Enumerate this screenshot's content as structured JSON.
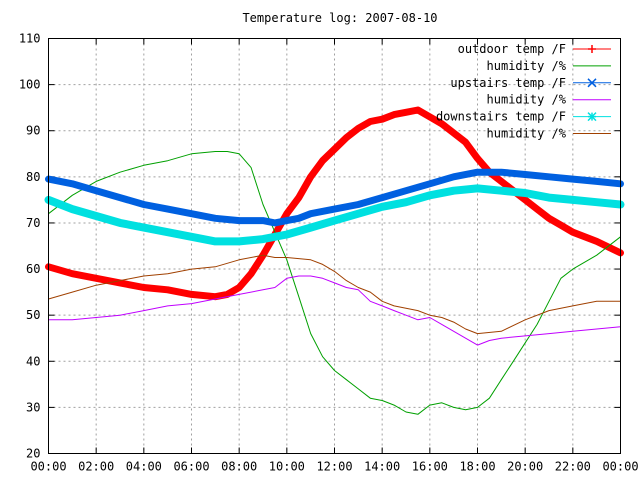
{
  "chart_data": {
    "type": "line",
    "title": "Temperature log: 2007-08-10",
    "xlabel": "",
    "ylabel": "",
    "xlim": [
      0,
      24
    ],
    "ylim": [
      20,
      110
    ],
    "x_ticks": [
      {
        "value": 0,
        "label": "00:00"
      },
      {
        "value": 2,
        "label": "02:00"
      },
      {
        "value": 4,
        "label": "04:00"
      },
      {
        "value": 6,
        "label": "06:00"
      },
      {
        "value": 8,
        "label": "08:00"
      },
      {
        "value": 10,
        "label": "10:00"
      },
      {
        "value": 12,
        "label": "12:00"
      },
      {
        "value": 14,
        "label": "14:00"
      },
      {
        "value": 16,
        "label": "16:00"
      },
      {
        "value": 18,
        "label": "18:00"
      },
      {
        "value": 20,
        "label": "20:00"
      },
      {
        "value": 22,
        "label": "22:00"
      },
      {
        "value": 24,
        "label": "00:00"
      }
    ],
    "y_ticks": [
      {
        "value": 20,
        "label": "20"
      },
      {
        "value": 30,
        "label": "30"
      },
      {
        "value": 40,
        "label": "40"
      },
      {
        "value": 50,
        "label": "50"
      },
      {
        "value": 60,
        "label": "60"
      },
      {
        "value": 70,
        "label": "70"
      },
      {
        "value": 80,
        "label": "80"
      },
      {
        "value": 90,
        "label": "90"
      },
      {
        "value": 100,
        "label": "100"
      },
      {
        "value": 110,
        "label": "110"
      }
    ],
    "grid": true,
    "legend_position": "top-right",
    "series": [
      {
        "name": "outdoor temp /F",
        "color": "#ff0000",
        "marker": "plus",
        "width": 7,
        "x": [
          0,
          1,
          2,
          3,
          4,
          5,
          6,
          7,
          7.5,
          8,
          8.5,
          9,
          9.5,
          10,
          10.5,
          11,
          11.5,
          12,
          12.5,
          13,
          13.5,
          14,
          14.5,
          15,
          15.5,
          16,
          16.5,
          17,
          17.5,
          18,
          18.5,
          19,
          19.5,
          20,
          20.5,
          21,
          21.5,
          22,
          23,
          24
        ],
        "y": [
          60.5,
          59.0,
          58.0,
          57.0,
          56.0,
          55.5,
          54.5,
          54.0,
          54.5,
          56.0,
          59.0,
          63.0,
          67.5,
          72.0,
          75.5,
          80.0,
          83.5,
          86.0,
          88.5,
          90.5,
          92.0,
          92.5,
          93.5,
          94.0,
          94.5,
          93.0,
          91.5,
          89.5,
          87.5,
          84.0,
          81.0,
          79.0,
          77.0,
          75.0,
          73.0,
          71.0,
          69.5,
          68.0,
          66.0,
          63.5
        ]
      },
      {
        "name": "humidity /%",
        "color": "#00a000",
        "marker": "none",
        "width": 1,
        "x": [
          0,
          1,
          2,
          3,
          4,
          5,
          6,
          7,
          7.5,
          8,
          8.5,
          9,
          9.5,
          10,
          10.5,
          11,
          11.5,
          12,
          12.5,
          13,
          13.5,
          14,
          14.5,
          15,
          15.5,
          16,
          16.5,
          17,
          17.5,
          18,
          18.5,
          19,
          19.5,
          20,
          20.5,
          21,
          21.5,
          22,
          23,
          24
        ],
        "y": [
          72,
          76,
          79,
          81,
          82.5,
          83.5,
          85,
          85.5,
          85.5,
          85,
          82,
          74,
          68,
          62,
          54,
          46,
          41,
          38,
          36,
          34,
          32,
          31.5,
          30.5,
          29,
          28.5,
          30.5,
          31,
          30,
          29.5,
          30,
          32,
          36,
          40,
          44,
          48,
          53,
          58,
          60,
          63,
          67
        ]
      },
      {
        "name": "upstairs temp /F",
        "color": "#0060e0",
        "marker": "cross",
        "width": 7,
        "x": [
          0,
          1,
          2,
          3,
          4,
          5,
          6,
          7,
          8,
          9,
          9.5,
          10,
          10.5,
          11,
          12,
          13,
          14,
          15,
          16,
          17,
          18,
          19,
          20,
          21,
          22,
          23,
          24
        ],
        "y": [
          79.5,
          78.5,
          77.0,
          75.5,
          74.0,
          73.0,
          72.0,
          71.0,
          70.5,
          70.5,
          70.0,
          70.5,
          71.0,
          72.0,
          73.0,
          74.0,
          75.5,
          77.0,
          78.5,
          80.0,
          81.0,
          81.0,
          80.5,
          80.0,
          79.5,
          79.0,
          78.5
        ]
      },
      {
        "name": "humidity /%",
        "color": "#c000ff",
        "marker": "none",
        "width": 1,
        "x": [
          0,
          1,
          2,
          3,
          4,
          5,
          6,
          7,
          8,
          9,
          9.5,
          10,
          10.5,
          11,
          11.5,
          12,
          12.5,
          13,
          13.5,
          14,
          14.5,
          15,
          15.5,
          16,
          16.5,
          17,
          17.5,
          18,
          18.5,
          19,
          20,
          21,
          22,
          23,
          24
        ],
        "y": [
          49,
          49,
          49.5,
          50,
          51,
          52,
          52.5,
          53.5,
          54.5,
          55.5,
          56,
          58,
          58.5,
          58.5,
          58,
          57,
          56,
          55.5,
          53,
          52,
          51,
          50,
          49,
          49.5,
          48,
          46.5,
          45,
          43.5,
          44.5,
          45,
          45.5,
          46,
          46.5,
          47,
          47.5
        ]
      },
      {
        "name": "downstairs temp /F",
        "color": "#00e0e0",
        "marker": "star",
        "width": 8,
        "x": [
          0,
          1,
          2,
          3,
          4,
          5,
          6,
          7,
          8,
          9,
          10,
          11,
          12,
          13,
          14,
          15,
          16,
          17,
          18,
          19,
          20,
          21,
          22,
          23,
          24
        ],
        "y": [
          75.0,
          73.0,
          71.5,
          70.0,
          69.0,
          68.0,
          67.0,
          66.0,
          66.0,
          66.5,
          67.5,
          69.0,
          70.5,
          72.0,
          73.5,
          74.5,
          76.0,
          77.0,
          77.5,
          77.0,
          76.5,
          75.5,
          75.0,
          74.5,
          74.0
        ]
      },
      {
        "name": "humidity /%",
        "color": "#a04000",
        "marker": "none",
        "width": 1,
        "x": [
          0,
          1,
          2,
          3,
          4,
          5,
          6,
          7,
          8,
          9,
          9.5,
          10,
          11,
          11.5,
          12,
          12.5,
          13,
          13.5,
          14,
          14.5,
          15,
          15.5,
          16,
          16.5,
          17,
          17.5,
          18,
          19,
          20,
          21,
          22,
          23,
          24
        ],
        "y": [
          53.5,
          55,
          56.5,
          57.5,
          58.5,
          59,
          60,
          60.5,
          62,
          63,
          62.5,
          62.5,
          62,
          61,
          59.5,
          57.5,
          56,
          55,
          53,
          52,
          51.5,
          51,
          50,
          49.5,
          48.5,
          47,
          46,
          46.5,
          49,
          51,
          52,
          53,
          53
        ]
      }
    ]
  }
}
